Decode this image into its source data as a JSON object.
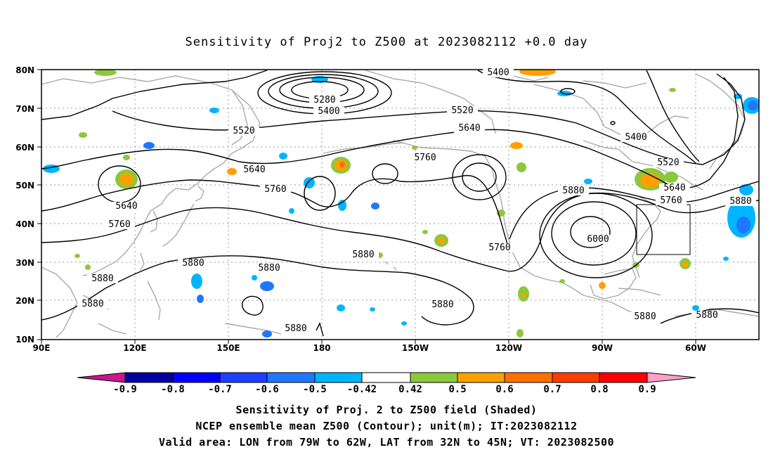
{
  "title": "Sensitivity of Proj2 to Z500 at 2023082112 +0.0 day",
  "lat_labels": [
    "80N",
    "70N",
    "60N",
    "50N",
    "40N",
    "30N",
    "20N",
    "10N"
  ],
  "lon_labels": [
    "90E",
    "120E",
    "150E",
    "180",
    "150W",
    "120W",
    "90W",
    "60W"
  ],
  "contour_labels": {
    "c5280": "5280",
    "c5400a": "5400",
    "c5400b": "5400",
    "c5400c": "5400",
    "c5520a": "5520",
    "c5520b": "5520",
    "c5520c": "5520",
    "c5640a": "5640",
    "c5640b": "5640",
    "c5640c": "5640",
    "c5640d": "5640",
    "c5760a": "5760",
    "c5760b": "5760",
    "c5760c": "5760",
    "c5760d": "5760",
    "c5760e": "5760",
    "c5880a": "5880",
    "c5880b": "5880",
    "c5880c": "5880",
    "c5880d": "5880",
    "c5880e": "5880",
    "c5880f": "5880",
    "c5880g": "5880",
    "c5880h": "5880",
    "c5880i": "5880",
    "c5880j": "5880",
    "c5880k": "5880",
    "c6000": "6000"
  },
  "colorbar": {
    "ticks": [
      "-0.9",
      "-0.8",
      "-0.7",
      "-0.6",
      "-0.5",
      "-0.42",
      "0.42",
      "0.5",
      "0.6",
      "0.7",
      "0.8",
      "0.9"
    ],
    "colors": [
      "#0000a0",
      "#0000ff",
      "#1e40ff",
      "#1e78ff",
      "#00b4ff",
      "#00d8ff",
      "#ffffff",
      "#8cc83c",
      "#ffa000",
      "#ff7000",
      "#ff3c00",
      "#ff0000"
    ],
    "low_end_color": "#c8168c",
    "high_end_color": "#ffa0c8"
  },
  "captions": {
    "line1": "Sensitivity of Proj. 2 to Z500 field (Shaded)",
    "line2": "NCEP ensemble mean Z500 (Contour); unit(m); IT:2023082112",
    "line3": "Valid area: LON from 79W to 62W, LAT from 32N to 45N; VT: 2023082500"
  }
}
